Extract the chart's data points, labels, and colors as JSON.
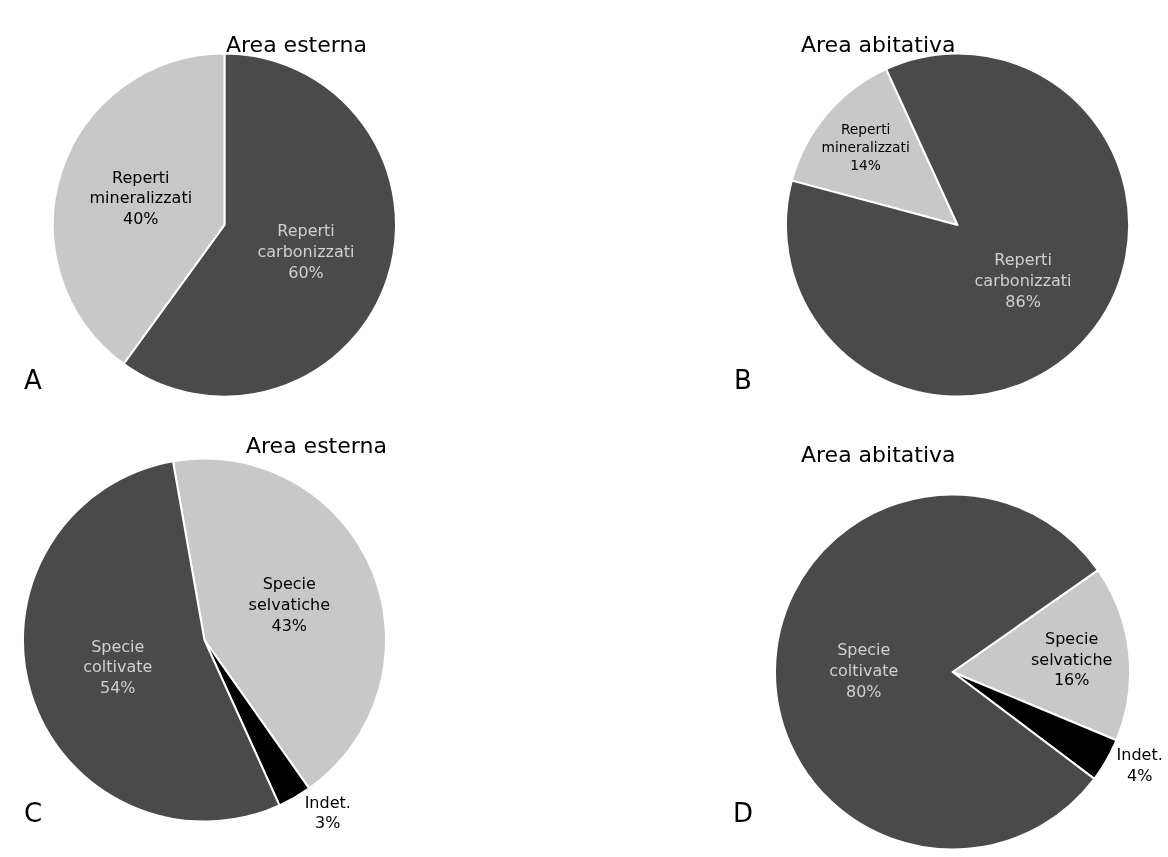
{
  "chart_data": [
    {
      "type": "pie",
      "title": "Area esterna",
      "categories": [
        "Reperti carbonizzati",
        "Reperti mineralizzati"
      ],
      "values": [
        60,
        40
      ],
      "value_labels": [
        "60%",
        "40%"
      ],
      "colors": [
        "#4a4a4a",
        "#c8c8c8"
      ],
      "annotations": [
        "A"
      ],
      "legend": false
    },
    {
      "type": "pie",
      "title": "Area abitativa",
      "categories": [
        "Reperti mineralizzati",
        "Reperti carbonizzati"
      ],
      "values": [
        14,
        86
      ],
      "value_labels": [
        "14%",
        "86%"
      ],
      "colors": [
        "#c8c8c8",
        "#4a4a4a"
      ],
      "annotations": [
        "B"
      ],
      "legend": false
    },
    {
      "type": "pie",
      "title": "Area esterna",
      "categories": [
        "Specie selvatiche",
        "Indet.",
        "Specie coltivate"
      ],
      "values": [
        43,
        3,
        54
      ],
      "value_labels": [
        "43%",
        "3%",
        "54%"
      ],
      "colors": [
        "#c8c8c8",
        "#000000",
        "#4a4a4a"
      ],
      "annotations": [
        "C"
      ],
      "legend": false
    },
    {
      "type": "pie",
      "title": "Area abitativa",
      "categories": [
        "Specie selvatiche",
        "Indet.",
        "Specie coltivate"
      ],
      "values": [
        16,
        4,
        80
      ],
      "value_labels": [
        "16%",
        "4%",
        "80%"
      ],
      "colors": [
        "#c8c8c8",
        "#000000",
        "#4a4a4a"
      ],
      "annotations": [
        "D"
      ],
      "legend": false
    }
  ]
}
